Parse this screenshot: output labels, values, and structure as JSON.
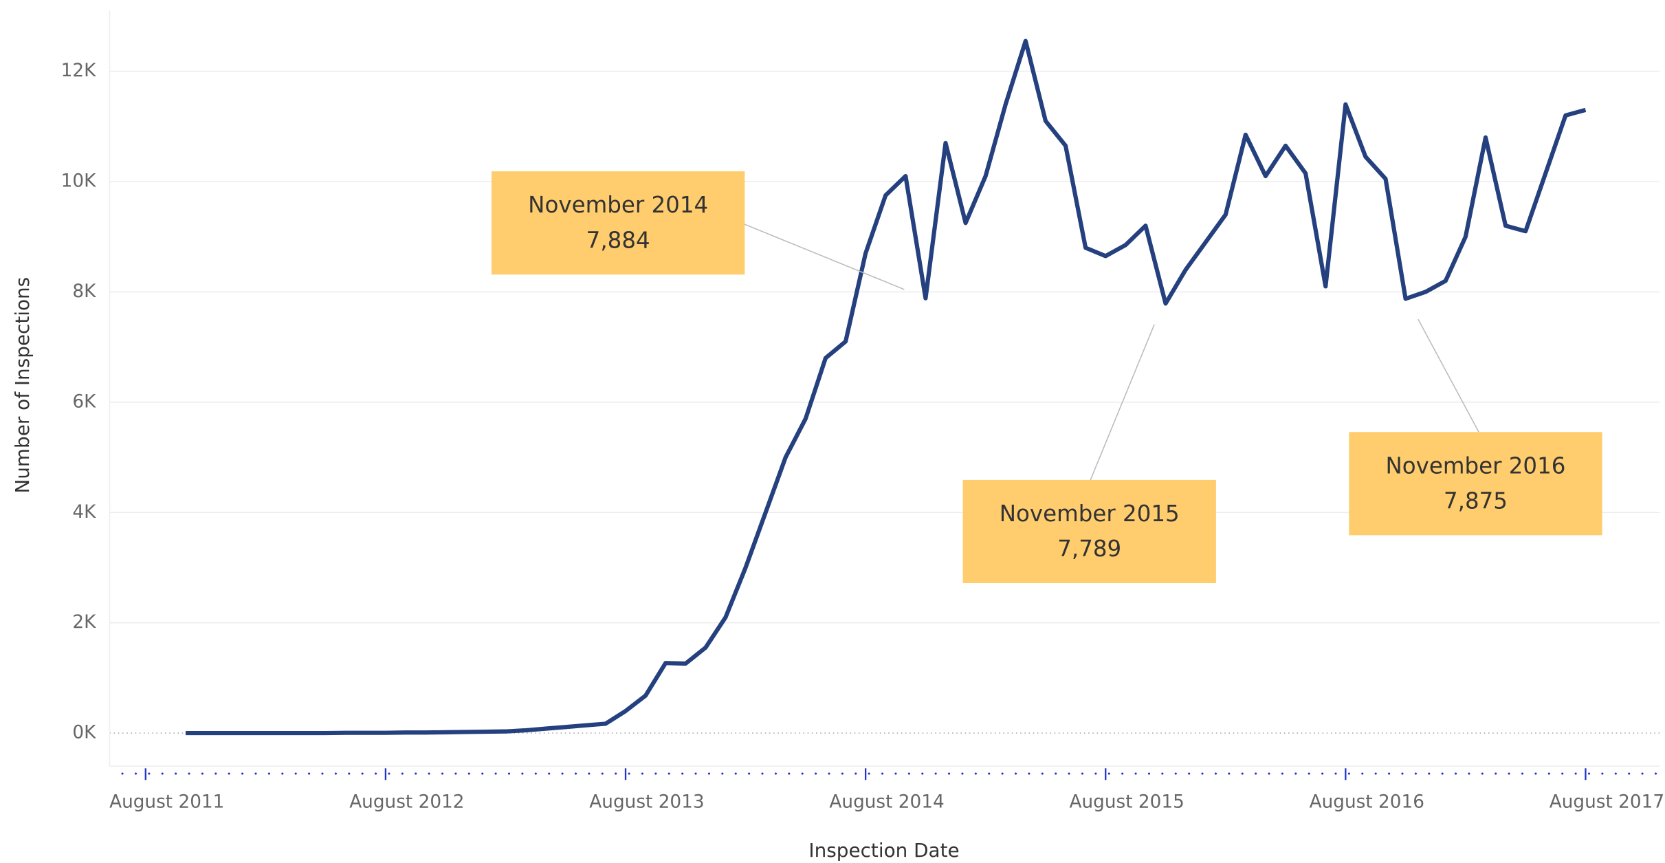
{
  "chart_data": {
    "type": "line",
    "x_label": "Inspection Date",
    "y_label": "Number of Inspections",
    "x": [
      "2011-10",
      "2011-11",
      "2011-12",
      "2012-01",
      "2012-02",
      "2012-03",
      "2012-04",
      "2012-05",
      "2012-06",
      "2012-07",
      "2012-08",
      "2012-09",
      "2012-10",
      "2012-11",
      "2012-12",
      "2013-01",
      "2013-02",
      "2013-03",
      "2013-04",
      "2013-05",
      "2013-06",
      "2013-07",
      "2013-08",
      "2013-09",
      "2013-10",
      "2013-11",
      "2013-12",
      "2014-01",
      "2014-02",
      "2014-03",
      "2014-04",
      "2014-05",
      "2014-06",
      "2014-07",
      "2014-08",
      "2014-09",
      "2014-10",
      "2014-11",
      "2014-12",
      "2015-01",
      "2015-02",
      "2015-03",
      "2015-04",
      "2015-05",
      "2015-06",
      "2015-07",
      "2015-08",
      "2015-09",
      "2015-10",
      "2015-11",
      "2015-12",
      "2016-01",
      "2016-02",
      "2016-03",
      "2016-04",
      "2016-05",
      "2016-06",
      "2016-07",
      "2016-08",
      "2016-09",
      "2016-10",
      "2016-11",
      "2016-12",
      "2017-01",
      "2017-02",
      "2017-03",
      "2017-04",
      "2017-05",
      "2017-06",
      "2017-07",
      "2017-08"
    ],
    "series": [
      {
        "name": "Number of Inspections",
        "color": "#24407e",
        "values": [
          0,
          0,
          0,
          0,
          0,
          0,
          0,
          0,
          5,
          5,
          5,
          10,
          10,
          15,
          20,
          25,
          30,
          50,
          80,
          110,
          140,
          170,
          400,
          680,
          1270,
          1260,
          1550,
          2100,
          3000,
          4000,
          5000,
          5700,
          6800,
          7100,
          8700,
          9750,
          10100,
          7884,
          10700,
          9250,
          10100,
          11400,
          12550,
          11100,
          10650,
          8800,
          8650,
          8850,
          9200,
          7789,
          8400,
          8900,
          9400,
          10850,
          10100,
          10650,
          10150,
          8100,
          11400,
          10450,
          10050,
          7875,
          8000,
          8200,
          9000,
          10800,
          9200,
          9100,
          10150,
          11200,
          11300
        ]
      }
    ],
    "annotations": [
      {
        "x": "2014-11",
        "text": "November 2014",
        "label": "7,884"
      },
      {
        "x": "2015-11",
        "text": "November 2015",
        "label": "7,789"
      },
      {
        "x": "2016-11",
        "text": "November 2016",
        "label": "7,875"
      }
    ],
    "annotation_color": "#ffc966",
    "ylim": [
      -600,
      13100
    ],
    "yticks": [
      {
        "value": 0,
        "label": "0K"
      },
      {
        "value": 2000,
        "label": "2K"
      },
      {
        "value": 4000,
        "label": "4K"
      },
      {
        "value": 6000,
        "label": "6K"
      },
      {
        "value": 8000,
        "label": "8K"
      },
      {
        "value": 10000,
        "label": "10K"
      },
      {
        "value": 12000,
        "label": "12K"
      }
    ],
    "xticks": [
      {
        "value": "2011-08",
        "label": "August 2011"
      },
      {
        "value": "2012-08",
        "label": "August 2012"
      },
      {
        "value": "2013-08",
        "label": "August 2013"
      },
      {
        "value": "2014-08",
        "label": "August 2014"
      },
      {
        "value": "2015-08",
        "label": "August 2015"
      },
      {
        "value": "2016-08",
        "label": "August 2016"
      },
      {
        "value": "2017-08",
        "label": "August 2017"
      }
    ],
    "grid": true
  }
}
